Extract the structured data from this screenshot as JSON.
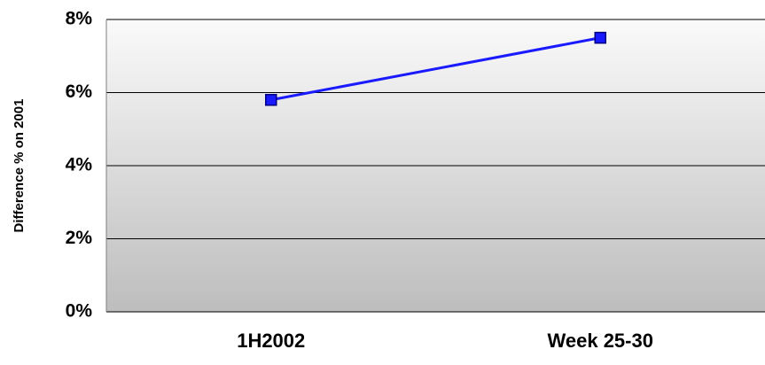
{
  "chart_data": {
    "type": "line",
    "y_axis_label": "Difference % on 2001",
    "categories": [
      "1H2002",
      "Week 25-30"
    ],
    "series": [
      {
        "name": null,
        "color": "#1a1aff",
        "values": [
          5.8,
          7.5
        ]
      }
    ],
    "ylim": [
      0,
      8
    ],
    "yticks": [
      {
        "value": 0,
        "label": "0%"
      },
      {
        "value": 2,
        "label": "2%"
      },
      {
        "value": 4,
        "label": "4%"
      },
      {
        "value": 6,
        "label": "6%"
      },
      {
        "value": 8,
        "label": "8%"
      }
    ],
    "grid": true
  }
}
